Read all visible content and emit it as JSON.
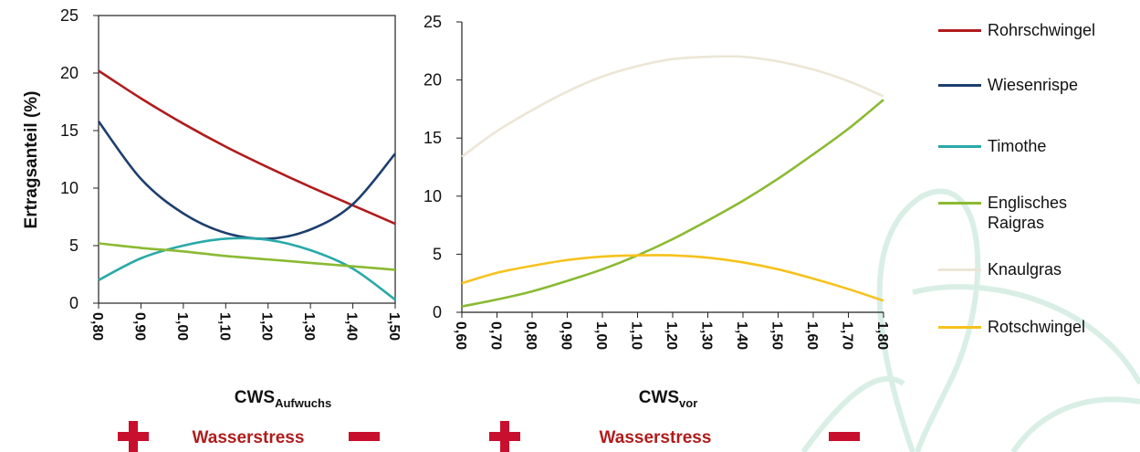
{
  "chart_data": [
    {
      "type": "line",
      "ylabel": "Ertragsanteil (%)",
      "xlabel": "CWS",
      "xlabel_sub": "Aufwuchs",
      "annotation": "Wasserstress",
      "x": [
        0.8,
        0.9,
        1.0,
        1.1,
        1.2,
        1.3,
        1.4,
        1.5
      ],
      "xlim": [
        0.8,
        1.5
      ],
      "xticks": [
        {
          "value": 0.8,
          "label": "0,80"
        },
        {
          "value": 0.9,
          "label": "0,90"
        },
        {
          "value": 1.0,
          "label": "1,00"
        },
        {
          "value": 1.1,
          "label": "1,10"
        },
        {
          "value": 1.2,
          "label": "1,20"
        },
        {
          "value": 1.3,
          "label": "1,30"
        },
        {
          "value": 1.4,
          "label": "1,40"
        },
        {
          "value": 1.5,
          "label": "1,50"
        }
      ],
      "ylim": [
        0,
        25
      ],
      "yticks": [
        0,
        5,
        10,
        15,
        20,
        25
      ],
      "series": [
        {
          "name": "Rohrschwingel",
          "color": "#b01c1c",
          "values": [
            20.2,
            17.8,
            15.6,
            13.6,
            11.8,
            10.1,
            8.5,
            6.9
          ]
        },
        {
          "name": "Wiesenrispe",
          "color": "#1d3f6e",
          "values": [
            15.8,
            10.8,
            7.8,
            6.1,
            5.6,
            6.4,
            8.6,
            13.0
          ]
        },
        {
          "name": "Timothe",
          "color": "#2aa9a9",
          "values": [
            2.0,
            3.9,
            5.0,
            5.6,
            5.5,
            4.6,
            3.0,
            0.3
          ]
        },
        {
          "name": "Englisches Raigras",
          "color": "#8aba32",
          "values": [
            5.2,
            4.8,
            4.5,
            4.1,
            3.8,
            3.5,
            3.2,
            2.9
          ]
        }
      ]
    },
    {
      "type": "line",
      "xlabel": "CWS",
      "xlabel_sub": "vor",
      "annotation": "Wasserstress",
      "x": [
        0.6,
        0.7,
        0.8,
        0.9,
        1.0,
        1.1,
        1.2,
        1.3,
        1.4,
        1.5,
        1.6,
        1.7,
        1.8
      ],
      "xlim": [
        0.6,
        1.8
      ],
      "xticks": [
        {
          "value": 0.6,
          "label": "0,60"
        },
        {
          "value": 0.7,
          "label": "0,70"
        },
        {
          "value": 0.8,
          "label": "0,80"
        },
        {
          "value": 0.9,
          "label": "0,90"
        },
        {
          "value": 1.0,
          "label": "1,00"
        },
        {
          "value": 1.1,
          "label": "1,10"
        },
        {
          "value": 1.2,
          "label": "1,20"
        },
        {
          "value": 1.3,
          "label": "1,30"
        },
        {
          "value": 1.4,
          "label": "1,40"
        },
        {
          "value": 1.5,
          "label": "1,50"
        },
        {
          "value": 1.6,
          "label": "1,60"
        },
        {
          "value": 1.7,
          "label": "1,70"
        },
        {
          "value": 1.8,
          "label": "1,80"
        }
      ],
      "ylim": [
        0,
        25
      ],
      "yticks": [
        0,
        5,
        10,
        15,
        20,
        25
      ],
      "series": [
        {
          "name": "Knaulgras",
          "color": "#ece6d6",
          "values": [
            13.4,
            15.6,
            17.4,
            19.0,
            20.3,
            21.2,
            21.8,
            22.0,
            22.0,
            21.6,
            20.9,
            19.9,
            18.6
          ]
        },
        {
          "name": "Englisches Raigras",
          "color": "#8aba32",
          "values": [
            0.5,
            1.1,
            1.8,
            2.7,
            3.7,
            4.9,
            6.3,
            7.9,
            9.6,
            11.5,
            13.6,
            15.8,
            18.3
          ]
        },
        {
          "name": "Rotschwingel",
          "color": "#f6c21c",
          "values": [
            2.5,
            3.4,
            4.0,
            4.5,
            4.8,
            4.9,
            4.9,
            4.7,
            4.3,
            3.7,
            2.9,
            2.0,
            1.0
          ]
        }
      ]
    }
  ]
}
